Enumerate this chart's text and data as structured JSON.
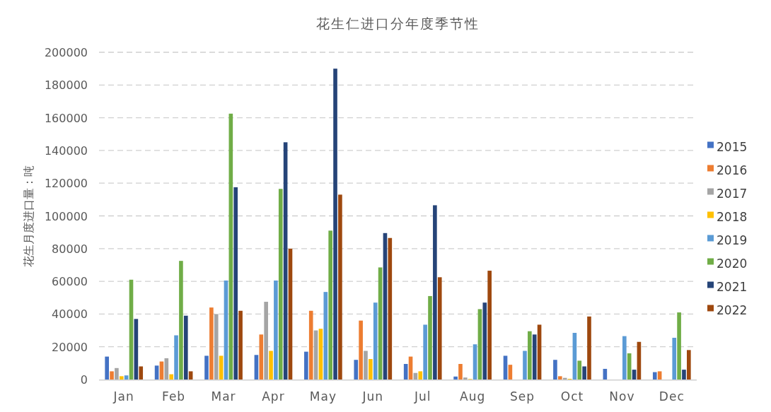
{
  "chart_data": {
    "type": "bar",
    "title": "花生仁进口分年度季节性",
    "ylabel": "花生月度进口量：吨",
    "categories": [
      "Jan",
      "Feb",
      "Mar",
      "Apr",
      "May",
      "Jun",
      "Jul",
      "Aug",
      "Sep",
      "Oct",
      "Nov",
      "Dec"
    ],
    "series": [
      {
        "name": "2015",
        "color": "#4472c4",
        "values": [
          14000,
          8500,
          14500,
          15000,
          17000,
          12000,
          9500,
          1800,
          14500,
          12000,
          6500,
          4500
        ]
      },
      {
        "name": "2016",
        "color": "#ed7d31",
        "values": [
          5000,
          11000,
          44000,
          27500,
          42000,
          36000,
          14000,
          9500,
          9000,
          2000,
          null,
          5000
        ]
      },
      {
        "name": "2017",
        "color": "#a5a5a5",
        "values": [
          7000,
          13000,
          40000,
          47500,
          30000,
          17500,
          4000,
          1200,
          null,
          1000,
          null,
          null
        ]
      },
      {
        "name": "2018",
        "color": "#ffc000",
        "values": [
          2000,
          3200,
          14500,
          17500,
          31000,
          12500,
          5000,
          300,
          null,
          400,
          null,
          null
        ]
      },
      {
        "name": "2019",
        "color": "#5b9bd5",
        "values": [
          2500,
          27000,
          60500,
          60500,
          53500,
          47000,
          33500,
          21500,
          17500,
          28500,
          26500,
          25500
        ]
      },
      {
        "name": "2020",
        "color": "#70ad47",
        "values": [
          61000,
          72500,
          162500,
          116500,
          91000,
          68500,
          51000,
          43000,
          29500,
          11500,
          16000,
          41000
        ]
      },
      {
        "name": "2021",
        "color": "#264478",
        "values": [
          37000,
          39000,
          117500,
          145000,
          190000,
          89500,
          106500,
          47000,
          27500,
          8000,
          6000,
          6000
        ]
      },
      {
        "name": "2022",
        "color": "#9e480e",
        "values": [
          8000,
          5000,
          42000,
          80000,
          113000,
          86500,
          62500,
          66500,
          33500,
          38500,
          23000,
          18000
        ]
      }
    ],
    "ylim": [
      0,
      200000
    ],
    "yticks": [
      0,
      20000,
      40000,
      60000,
      80000,
      100000,
      120000,
      140000,
      160000,
      180000,
      200000
    ],
    "grid": "y",
    "legend": "right"
  }
}
